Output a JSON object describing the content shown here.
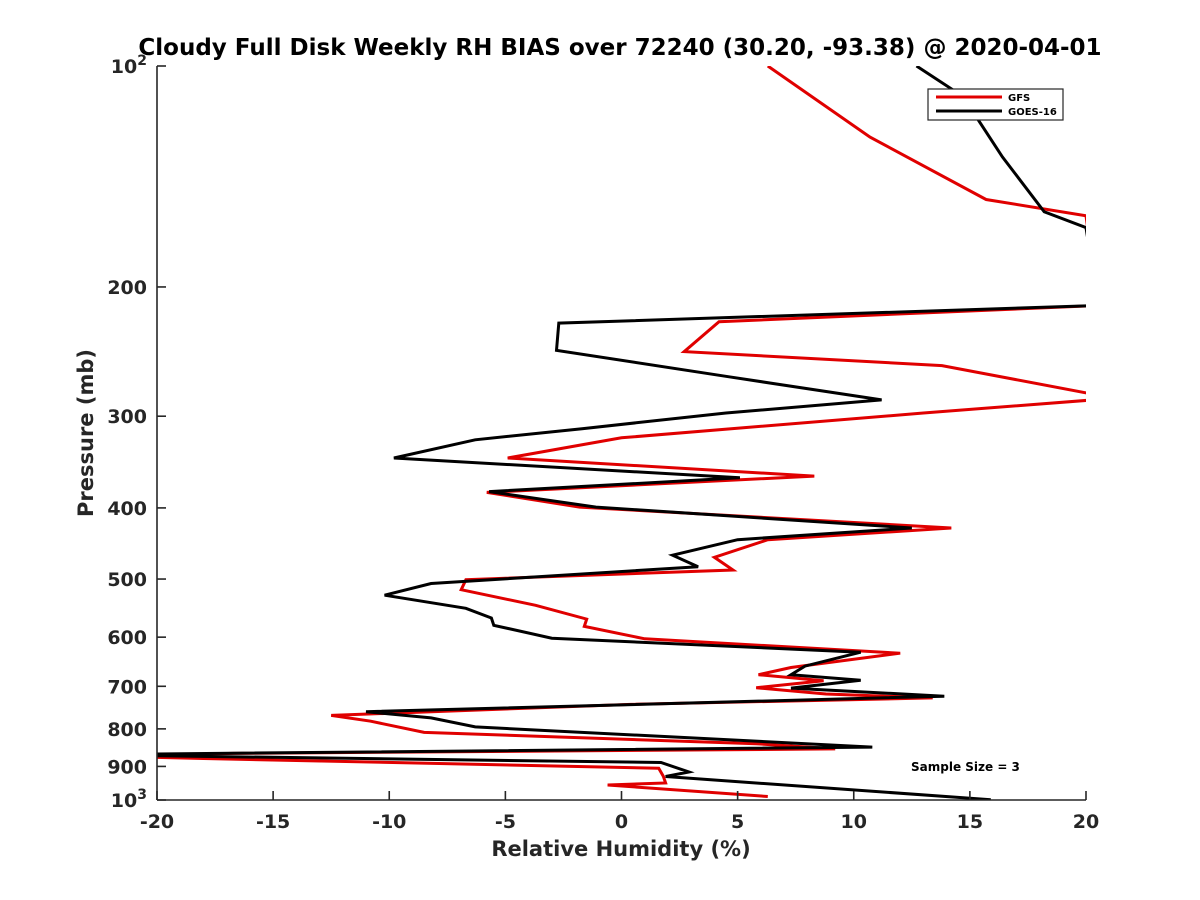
{
  "chart_data": {
    "type": "line",
    "title": "Cloudy Full Disk Weekly RH BIAS over 72240 (30.20, -93.38) @ 2020-04-01",
    "xlabel": "Relative Humidity (%)",
    "ylabel": "Pressure (mb)",
    "xlim": [
      -20,
      20
    ],
    "ylim": [
      100,
      1000
    ],
    "yscale": "log",
    "y_reversed": true,
    "grid": false,
    "x_ticks": [
      -20,
      -15,
      -10,
      -5,
      0,
      5,
      10,
      15,
      20
    ],
    "x_tick_labels": [
      "-20",
      "-15",
      "-10",
      "-5",
      "0",
      "5",
      "10",
      "15",
      "20"
    ],
    "y_ticks": [
      100,
      200,
      300,
      400,
      500,
      600,
      700,
      800,
      900,
      1000
    ],
    "y_tick_labels": [
      {
        "base": "10",
        "exp": "2"
      },
      {
        "base": "200",
        "exp": ""
      },
      {
        "base": "300",
        "exp": ""
      },
      {
        "base": "400",
        "exp": ""
      },
      {
        "base": "500",
        "exp": ""
      },
      {
        "base": "600",
        "exp": ""
      },
      {
        "base": "700",
        "exp": ""
      },
      {
        "base": "800",
        "exp": ""
      },
      {
        "base": "900",
        "exp": ""
      },
      {
        "base": "10",
        "exp": "3"
      }
    ],
    "legend_position": "top-right",
    "annotation": "Sample Size = 3",
    "series": [
      {
        "name": "GFS",
        "color": "#e00000",
        "points": [
          [
            6.3,
            100
          ],
          [
            10.7,
            125
          ],
          [
            15.7,
            152
          ],
          [
            20.0,
            160
          ],
          [
            20.5,
            209
          ],
          [
            20.5,
            212
          ],
          [
            4.2,
            223
          ],
          [
            2.7,
            245
          ],
          [
            13.8,
            256
          ],
          [
            20.3,
            280
          ],
          [
            20.3,
            285
          ],
          [
            13.0,
            297
          ],
          [
            0.0,
            321
          ],
          [
            -4.9,
            342
          ],
          [
            8.3,
            362
          ],
          [
            -5.8,
            381
          ],
          [
            -1.8,
            399
          ],
          [
            14.2,
            426
          ],
          [
            6.3,
            442
          ],
          [
            4.0,
            467
          ],
          [
            4.8,
            486
          ],
          [
            -6.7,
            501
          ],
          [
            -6.9,
            517
          ],
          [
            -3.7,
            543
          ],
          [
            -1.5,
            567
          ],
          [
            -1.6,
            580
          ],
          [
            1.0,
            603
          ],
          [
            12.0,
            631
          ],
          [
            7.3,
            660
          ],
          [
            5.9,
            675
          ],
          [
            8.7,
            688
          ],
          [
            5.8,
            703
          ],
          [
            8.8,
            717
          ],
          [
            13.4,
            726
          ],
          [
            0.4,
            741
          ],
          [
            -12.5,
            767
          ],
          [
            -10.8,
            781
          ],
          [
            -8.5,
            809
          ],
          [
            5.8,
            838
          ],
          [
            9.2,
            852
          ],
          [
            -16.7,
            864
          ],
          [
            -20.5,
            869
          ],
          [
            -20.5,
            874
          ],
          [
            -18.0,
            878
          ],
          [
            1.6,
            905
          ],
          [
            1.8,
            928
          ],
          [
            1.9,
            948
          ],
          [
            -0.6,
            954
          ],
          [
            6.3,
            989
          ]
        ]
      },
      {
        "name": "GOES-16",
        "color": "#000000",
        "points": [
          [
            12.7,
            100
          ],
          [
            14.7,
            110
          ],
          [
            16.4,
            133
          ],
          [
            18.2,
            158
          ],
          [
            20.0,
            166
          ],
          [
            20.5,
            209
          ],
          [
            20.5,
            212
          ],
          [
            -2.7,
            224
          ],
          [
            -2.8,
            244
          ],
          [
            4.6,
            265
          ],
          [
            11.2,
            285
          ],
          [
            4.5,
            297
          ],
          [
            -1.7,
            312
          ],
          [
            -6.3,
            323
          ],
          [
            -9.8,
            342
          ],
          [
            5.1,
            364
          ],
          [
            -5.7,
            380
          ],
          [
            -1.1,
            399
          ],
          [
            12.5,
            426
          ],
          [
            5.0,
            442
          ],
          [
            2.2,
            464
          ],
          [
            3.3,
            481
          ],
          [
            -8.2,
            507
          ],
          [
            -10.2,
            526
          ],
          [
            -6.7,
            548
          ],
          [
            -5.6,
            565
          ],
          [
            -5.5,
            578
          ],
          [
            -3.0,
            602
          ],
          [
            10.3,
            629
          ],
          [
            7.9,
            657
          ],
          [
            7.3,
            675
          ],
          [
            10.3,
            687
          ],
          [
            7.3,
            704
          ],
          [
            13.9,
            722
          ],
          [
            -11.0,
            758
          ],
          [
            -8.2,
            773
          ],
          [
            -6.3,
            795
          ],
          [
            10.8,
            847
          ],
          [
            -20.5,
            866
          ],
          [
            -20.5,
            870
          ],
          [
            1.7,
            889
          ],
          [
            2.9,
            916
          ],
          [
            1.9,
            929
          ],
          [
            15.9,
            999
          ]
        ]
      }
    ]
  }
}
